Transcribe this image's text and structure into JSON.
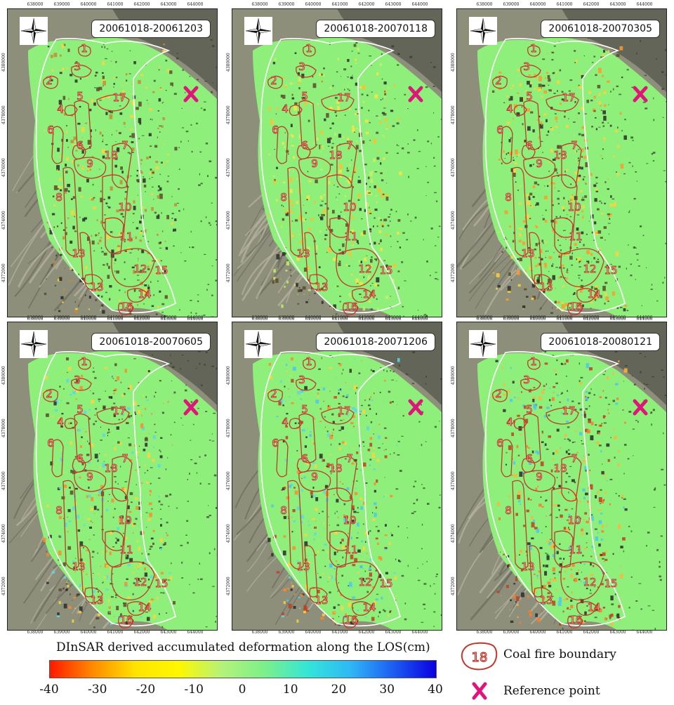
{
  "panels": [
    {
      "label": "20061018-20061203",
      "variant": 0
    },
    {
      "label": "20061018-20070118",
      "variant": 1
    },
    {
      "label": "20061018-20070305",
      "variant": 2
    },
    {
      "label": "20061018-20070605",
      "variant": 3
    },
    {
      "label": "20061018-20071206",
      "variant": 4
    },
    {
      "label": "20061018-20080121",
      "variant": 5
    }
  ],
  "x_ticks": [
    "638000",
    "639000",
    "640000",
    "641000",
    "642000",
    "643000",
    "644000"
  ],
  "y_ticks": [
    "4380000",
    "4378000",
    "4376000",
    "4374000",
    "4372000"
  ],
  "fire_numbers": [
    "1",
    "2",
    "3",
    "4",
    "5",
    "6",
    "6",
    "7",
    "8",
    "9",
    "10",
    "11",
    "12",
    "13",
    "13",
    "14",
    "15",
    "16",
    "17",
    "18"
  ],
  "legend": {
    "colorbar_title": "DInSAR derived  accumulated deformation along the LOS(cm)",
    "colorbar_ticks": [
      "-40",
      "-30",
      "-20",
      "-10",
      "0",
      "10",
      "20",
      "30",
      "40"
    ],
    "colorbar_range": [
      -40,
      40
    ],
    "fire_symbol_number": "18",
    "fire_label": "Coal fire boundary",
    "reference_label": "Reference point"
  },
  "colors": {
    "fire_boundary": "#c0392b",
    "reference_marker": "#e0157a",
    "deformation_base": "#8ef07a"
  },
  "icons": [
    "compass-rose-icon",
    "reference-point-x-icon",
    "coal-fire-boundary-icon"
  ]
}
